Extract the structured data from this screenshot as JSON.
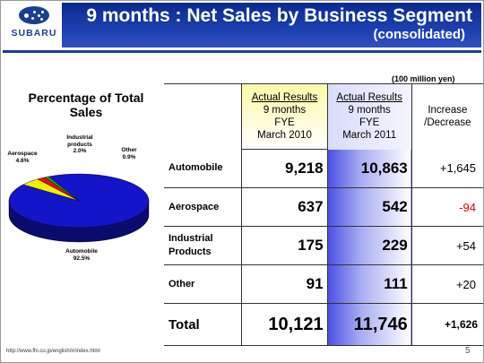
{
  "header": {
    "logo_text": "SUBARU",
    "title": "9 months : Net Sales by Business Segment",
    "subtitle": "(consolidated)"
  },
  "chart_data": {
    "type": "pie",
    "title": "Percentage of Total Sales",
    "slices": [
      {
        "name": "Automobile",
        "pct_label": "92.5%",
        "value": 92.5,
        "color": "#1414c8"
      },
      {
        "name": "Aerospace",
        "pct_label": "4.6%",
        "value": 4.6,
        "color": "#f0f000"
      },
      {
        "name": "Industrial products",
        "pct_label": "2.0%",
        "value": 2.0,
        "color": "#e01010"
      },
      {
        "name": "Other",
        "pct_label": "0.9%",
        "value": 0.9,
        "color": "#10b010"
      }
    ]
  },
  "table": {
    "unit": "(100 million yen)",
    "columns": [
      {
        "head": "Actual Results",
        "lines": [
          "9 months",
          "FYE",
          "March 2010"
        ]
      },
      {
        "head": "Actual Results",
        "lines": [
          "9 months",
          "FYE",
          "March 2011"
        ]
      },
      {
        "head": "",
        "lines": [
          "Increase",
          "/Decrease"
        ]
      }
    ],
    "rows": [
      {
        "name": "Automobile",
        "v2010": "9,218",
        "v2011": "10,863",
        "change": "+1,645",
        "negative": false
      },
      {
        "name": "Aerospace",
        "v2010": "637",
        "v2011": "542",
        "change": "-94",
        "negative": true
      },
      {
        "name": "Industrial Products",
        "v2010": "175",
        "v2011": "229",
        "change": "+54",
        "negative": false
      },
      {
        "name": "Other",
        "v2010": "91",
        "v2011": "111",
        "change": "+20",
        "negative": false
      }
    ],
    "total": {
      "name": "Total",
      "v2010": "10,121",
      "v2011": "11,746",
      "change": "+1,626"
    }
  },
  "footer": {
    "url": "http://www.fhi.co.jp/english/ir/index.html",
    "page": "5"
  }
}
